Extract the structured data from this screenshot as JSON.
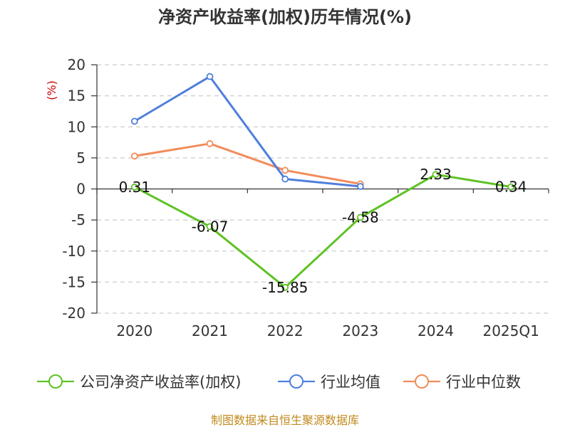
{
  "chart_data": {
    "type": "line",
    "title": "净资产收益率(加权)历年情况(%)",
    "ylabel": "(%)",
    "xlabel": "",
    "categories": [
      "2020",
      "2021",
      "2022",
      "2023",
      "2024",
      "2025Q1"
    ],
    "ylim": [
      -20,
      20
    ],
    "yticks": [
      20,
      15,
      10,
      5,
      0,
      -5,
      -10,
      -15,
      -20
    ],
    "grid": true,
    "legend_position": "bottom",
    "series": [
      {
        "name": "公司净资产收益率(加权)",
        "color": "#5ec224",
        "values": [
          0.31,
          -6.07,
          -15.85,
          -4.58,
          2.33,
          0.34
        ],
        "labels": [
          "0.31",
          "-6.07",
          "-15.85",
          "-4.58",
          "2.33",
          "0.34"
        ]
      },
      {
        "name": "行业均值",
        "color": "#4f7fdc",
        "values": [
          10.9,
          18.1,
          1.6,
          0.4,
          null,
          null
        ]
      },
      {
        "name": "行业中位数",
        "color": "#f28c5a",
        "values": [
          5.3,
          7.3,
          3.0,
          0.8,
          null,
          null
        ]
      }
    ],
    "source": "制图数据来自恒生聚源数据库"
  }
}
